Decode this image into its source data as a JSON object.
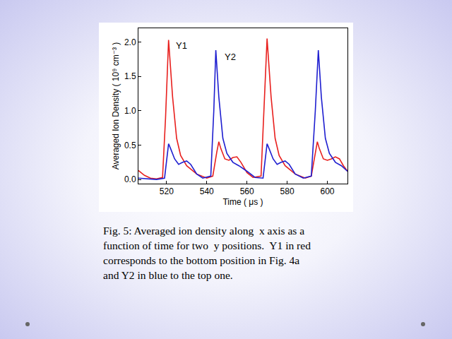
{
  "chart_data": {
    "type": "line",
    "x_label": "Time ( μs )",
    "y_label": "Averaged Ion Density ( 10⁹ cm⁻³ )",
    "xlim": [
      506,
      610
    ],
    "xticks": [
      520,
      540,
      560,
      580,
      600
    ],
    "ylim": [
      -0.06,
      2.2
    ],
    "yticks": [
      {
        "value": 0,
        "label": "0.0"
      },
      {
        "value": 0.5,
        "label": "0.5"
      },
      {
        "value": 1,
        "label": "1.0"
      },
      {
        "value": 1.5,
        "label": "1.5"
      },
      {
        "value": 2,
        "label": "2.0"
      }
    ],
    "grid": false,
    "annotations": [
      {
        "text": "Y1",
        "x": 527.5,
        "y": 1.95
      },
      {
        "text": "Y2",
        "x": 551.5,
        "y": 1.78
      }
    ],
    "series": [
      {
        "name": "Y1",
        "color": "#e8201e",
        "x": [
          506,
          509,
          512,
          515,
          518,
          519.5,
          521,
          523,
          525,
          527,
          530,
          535,
          540,
          543,
          545,
          546,
          547,
          549,
          551,
          553,
          555,
          557,
          560,
          563,
          567,
          568.5,
          570,
          572,
          574,
          576,
          579,
          584,
          589,
          592,
          594,
          595,
          596,
          598,
          600,
          602,
          604,
          606,
          608,
          610
        ],
        "values": [
          0.13,
          0.06,
          0.02,
          0.01,
          0.03,
          0.9,
          2.03,
          1.2,
          0.6,
          0.35,
          0.2,
          0.08,
          0.02,
          0.05,
          0.4,
          0.55,
          0.45,
          0.3,
          0.28,
          0.32,
          0.33,
          0.25,
          0.1,
          0.03,
          0.05,
          1.0,
          2.05,
          1.2,
          0.6,
          0.35,
          0.2,
          0.08,
          0.02,
          0.05,
          0.4,
          0.55,
          0.45,
          0.3,
          0.28,
          0.3,
          0.33,
          0.3,
          0.2,
          0.12
        ]
      },
      {
        "name": "Y2",
        "color": "#1f1fd0",
        "x": [
          506,
          512,
          515,
          519,
          520,
          521,
          522,
          524,
          526,
          528,
          530,
          532,
          535,
          538,
          542,
          543.5,
          544.5,
          546,
          548,
          550,
          553,
          556,
          560,
          564,
          568,
          569,
          570,
          571,
          573,
          575,
          577,
          579,
          581,
          584,
          588,
          592,
          594,
          595.5,
          597,
          599,
          601,
          604,
          607,
          610
        ],
        "values": [
          0.02,
          0.01,
          0,
          0.02,
          0.3,
          0.52,
          0.45,
          0.3,
          0.22,
          0.25,
          0.27,
          0.22,
          0.08,
          0.02,
          0.05,
          1.0,
          1.88,
          1.2,
          0.6,
          0.38,
          0.25,
          0.2,
          0.12,
          0.03,
          0.02,
          0.3,
          0.52,
          0.45,
          0.3,
          0.22,
          0.25,
          0.27,
          0.22,
          0.08,
          0.02,
          0.05,
          1.0,
          1.88,
          1.2,
          0.6,
          0.38,
          0.25,
          0.2,
          0.12
        ]
      }
    ]
  },
  "caption": [
    "Fig. 5: Averaged ion density along  x axis as a",
    "function of time for two  y positions.  Y1 in red",
    "corresponds to the bottom position in Fig. 4a",
    "and Y2 in blue to the top one."
  ]
}
